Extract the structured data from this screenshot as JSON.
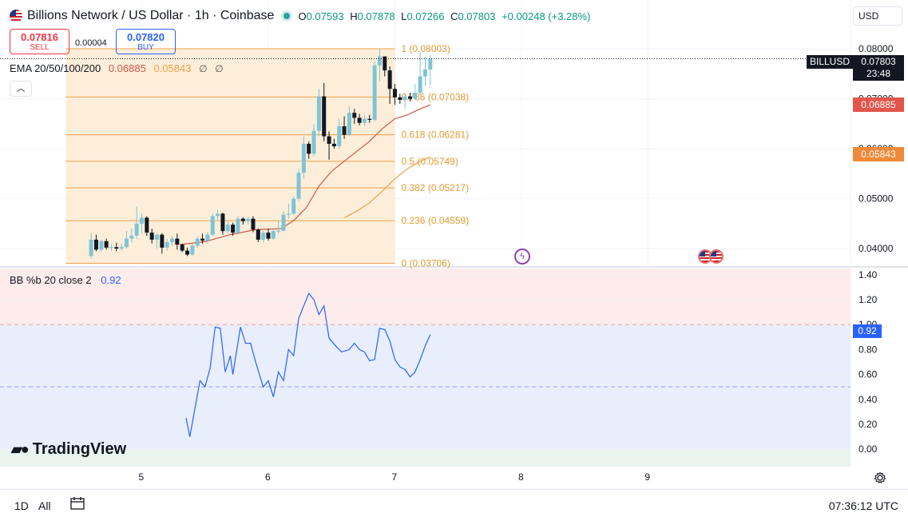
{
  "header": {
    "title": "Billions Network / US Dollar · 1h · Coinbase",
    "open_label": "O",
    "open": "0.07593",
    "high_label": "H",
    "high": "0.07878",
    "low_label": "L",
    "low": "0.07266",
    "close_label": "C",
    "close": "0.07803",
    "change": "+0.00248 (+3.28%)"
  },
  "trade": {
    "sell_price": "0.07816",
    "sell_label": "SELL",
    "spread": "0.00004",
    "buy_price": "0.07820",
    "buy_label": "BUY"
  },
  "ema": {
    "label": "EMA 20/50/100/200",
    "v20": "0.06885",
    "v50": "0.05843",
    "v100": "∅",
    "v200": "∅"
  },
  "bb": {
    "label": "BB %b 20 close 2",
    "value": "0.92"
  },
  "currency": "USD",
  "ticker": "BILLUSD",
  "last_price": "0.07803",
  "countdown": "23:48",
  "ema20_badge": "0.06885",
  "ema50_badge": "0.05843",
  "bb_badge": "0.92",
  "logo": "TradingView",
  "bottom": {
    "range_1d": "1D",
    "range_all": "All",
    "time": "07:36:12 UTC"
  },
  "colors": {
    "up": "#26a69a",
    "up_light": "#7ec4d6",
    "down": "#131722",
    "ema20": "#d0574d",
    "ema50": "#f0a04b",
    "bb": "#2962ff",
    "fib": "#f0a04b"
  },
  "chart_data": [
    {
      "type": "candlestick",
      "title": "Billions Network / US Dollar · 1h · Coinbase",
      "y_ticks": [
        "0.04000",
        "0.05000",
        "0.06000",
        "0.07000",
        "0.08000"
      ],
      "ylim": [
        0.0365,
        0.0898
      ],
      "x_ticks": [
        {
          "label": "5",
          "x": 5
        },
        {
          "label": "6",
          "x": 6
        },
        {
          "label": "7",
          "x": 7
        },
        {
          "label": "8",
          "x": 8
        },
        {
          "label": "9",
          "x": 9
        }
      ],
      "xlim": [
        3.88,
        10.6
      ],
      "candles": [
        {
          "x": 4.6,
          "o": 0.0385,
          "h": 0.0432,
          "l": 0.038,
          "c": 0.0418
        },
        {
          "x": 4.64,
          "o": 0.0418,
          "h": 0.0428,
          "l": 0.0395,
          "c": 0.0398
        },
        {
          "x": 4.68,
          "o": 0.0398,
          "h": 0.0418,
          "l": 0.0393,
          "c": 0.0415
        },
        {
          "x": 4.72,
          "o": 0.0415,
          "h": 0.042,
          "l": 0.0398,
          "c": 0.0402
        },
        {
          "x": 4.76,
          "o": 0.0402,
          "h": 0.041,
          "l": 0.0396,
          "c": 0.0403
        },
        {
          "x": 4.8,
          "o": 0.0403,
          "h": 0.0412,
          "l": 0.0395,
          "c": 0.04
        },
        {
          "x": 4.84,
          "o": 0.04,
          "h": 0.041,
          "l": 0.0396,
          "c": 0.0403
        },
        {
          "x": 4.88,
          "o": 0.0403,
          "h": 0.0435,
          "l": 0.04,
          "c": 0.042
        },
        {
          "x": 4.92,
          "o": 0.042,
          "h": 0.044,
          "l": 0.0412,
          "c": 0.0426
        },
        {
          "x": 4.96,
          "o": 0.0426,
          "h": 0.0485,
          "l": 0.042,
          "c": 0.045
        },
        {
          "x": 5.0,
          "o": 0.045,
          "h": 0.047,
          "l": 0.043,
          "c": 0.0462
        },
        {
          "x": 5.04,
          "o": 0.0462,
          "h": 0.0465,
          "l": 0.0425,
          "c": 0.0432
        },
        {
          "x": 5.08,
          "o": 0.0432,
          "h": 0.044,
          "l": 0.041,
          "c": 0.0418
        },
        {
          "x": 5.12,
          "o": 0.0418,
          "h": 0.043,
          "l": 0.04,
          "c": 0.0428
        },
        {
          "x": 5.16,
          "o": 0.0428,
          "h": 0.0431,
          "l": 0.039,
          "c": 0.0402
        },
        {
          "x": 5.2,
          "o": 0.0402,
          "h": 0.042,
          "l": 0.0396,
          "c": 0.0413
        },
        {
          "x": 5.24,
          "o": 0.0413,
          "h": 0.0425,
          "l": 0.0405,
          "c": 0.042
        },
        {
          "x": 5.28,
          "o": 0.042,
          "h": 0.043,
          "l": 0.0398,
          "c": 0.0408
        },
        {
          "x": 5.32,
          "o": 0.0408,
          "h": 0.041,
          "l": 0.0393,
          "c": 0.0396
        },
        {
          "x": 5.36,
          "o": 0.0396,
          "h": 0.0402,
          "l": 0.0385,
          "c": 0.0388
        },
        {
          "x": 5.4,
          "o": 0.0388,
          "h": 0.041,
          "l": 0.0386,
          "c": 0.0406
        },
        {
          "x": 5.44,
          "o": 0.0406,
          "h": 0.0425,
          "l": 0.0402,
          "c": 0.042
        },
        {
          "x": 5.48,
          "o": 0.042,
          "h": 0.043,
          "l": 0.041,
          "c": 0.0416
        },
        {
          "x": 5.52,
          "o": 0.0416,
          "h": 0.0432,
          "l": 0.041,
          "c": 0.0428
        },
        {
          "x": 5.56,
          "o": 0.0428,
          "h": 0.047,
          "l": 0.0425,
          "c": 0.0465
        },
        {
          "x": 5.6,
          "o": 0.0465,
          "h": 0.0478,
          "l": 0.0455,
          "c": 0.047
        },
        {
          "x": 5.64,
          "o": 0.047,
          "h": 0.0472,
          "l": 0.0428,
          "c": 0.0435
        },
        {
          "x": 5.68,
          "o": 0.0435,
          "h": 0.0455,
          "l": 0.043,
          "c": 0.0448
        },
        {
          "x": 5.72,
          "o": 0.0448,
          "h": 0.0452,
          "l": 0.0426,
          "c": 0.0432
        },
        {
          "x": 5.76,
          "o": 0.0432,
          "h": 0.0465,
          "l": 0.0428,
          "c": 0.046
        },
        {
          "x": 5.8,
          "o": 0.046,
          "h": 0.0463,
          "l": 0.0448,
          "c": 0.0455
        },
        {
          "x": 5.84,
          "o": 0.0455,
          "h": 0.0463,
          "l": 0.0448,
          "c": 0.046
        },
        {
          "x": 5.88,
          "o": 0.046,
          "h": 0.0465,
          "l": 0.0433,
          "c": 0.0438
        },
        {
          "x": 5.92,
          "o": 0.0438,
          "h": 0.044,
          "l": 0.0413,
          "c": 0.0418
        },
        {
          "x": 5.96,
          "o": 0.0418,
          "h": 0.0436,
          "l": 0.0412,
          "c": 0.0432
        },
        {
          "x": 6.0,
          "o": 0.0432,
          "h": 0.044,
          "l": 0.0416,
          "c": 0.042
        },
        {
          "x": 6.04,
          "o": 0.042,
          "h": 0.044,
          "l": 0.0418,
          "c": 0.0435
        },
        {
          "x": 6.08,
          "o": 0.0435,
          "h": 0.0455,
          "l": 0.043,
          "c": 0.0436
        },
        {
          "x": 6.12,
          "o": 0.0436,
          "h": 0.0475,
          "l": 0.0434,
          "c": 0.0468
        },
        {
          "x": 6.16,
          "o": 0.0468,
          "h": 0.049,
          "l": 0.046,
          "c": 0.047
        },
        {
          "x": 6.2,
          "o": 0.047,
          "h": 0.0505,
          "l": 0.0468,
          "c": 0.05
        },
        {
          "x": 6.24,
          "o": 0.05,
          "h": 0.056,
          "l": 0.0496,
          "c": 0.0552
        },
        {
          "x": 6.28,
          "o": 0.0552,
          "h": 0.0625,
          "l": 0.054,
          "c": 0.061
        },
        {
          "x": 6.32,
          "o": 0.061,
          "h": 0.0615,
          "l": 0.058,
          "c": 0.059
        },
        {
          "x": 6.36,
          "o": 0.059,
          "h": 0.065,
          "l": 0.0585,
          "c": 0.0636
        },
        {
          "x": 6.4,
          "o": 0.0636,
          "h": 0.072,
          "l": 0.0625,
          "c": 0.0705
        },
        {
          "x": 6.44,
          "o": 0.0705,
          "h": 0.0732,
          "l": 0.0615,
          "c": 0.0625
        },
        {
          "x": 6.48,
          "o": 0.0625,
          "h": 0.0635,
          "l": 0.0578,
          "c": 0.061
        },
        {
          "x": 6.52,
          "o": 0.061,
          "h": 0.062,
          "l": 0.06,
          "c": 0.0605
        },
        {
          "x": 6.56,
          "o": 0.0605,
          "h": 0.066,
          "l": 0.06,
          "c": 0.0645
        },
        {
          "x": 6.6,
          "o": 0.0645,
          "h": 0.0665,
          "l": 0.062,
          "c": 0.0628
        },
        {
          "x": 6.64,
          "o": 0.0628,
          "h": 0.0685,
          "l": 0.0625,
          "c": 0.0672
        },
        {
          "x": 6.68,
          "o": 0.0672,
          "h": 0.068,
          "l": 0.065,
          "c": 0.0662
        },
        {
          "x": 6.72,
          "o": 0.0662,
          "h": 0.067,
          "l": 0.0647,
          "c": 0.0652
        },
        {
          "x": 6.76,
          "o": 0.0652,
          "h": 0.0668,
          "l": 0.0645,
          "c": 0.066
        },
        {
          "x": 6.8,
          "o": 0.066,
          "h": 0.0668,
          "l": 0.0652,
          "c": 0.0658
        },
        {
          "x": 6.84,
          "o": 0.0658,
          "h": 0.0775,
          "l": 0.0655,
          "c": 0.0767
        },
        {
          "x": 6.88,
          "o": 0.0767,
          "h": 0.08,
          "l": 0.0735,
          "c": 0.0785
        },
        {
          "x": 6.92,
          "o": 0.0785,
          "h": 0.0785,
          "l": 0.0745,
          "c": 0.0757
        },
        {
          "x": 6.96,
          "o": 0.0757,
          "h": 0.0765,
          "l": 0.069,
          "c": 0.072
        },
        {
          "x": 7.0,
          "o": 0.072,
          "h": 0.073,
          "l": 0.0688,
          "c": 0.0703
        },
        {
          "x": 7.04,
          "o": 0.0703,
          "h": 0.071,
          "l": 0.069,
          "c": 0.0698
        },
        {
          "x": 7.08,
          "o": 0.0698,
          "h": 0.0708,
          "l": 0.068,
          "c": 0.0705
        },
        {
          "x": 7.12,
          "o": 0.0705,
          "h": 0.0712,
          "l": 0.0695,
          "c": 0.07
        },
        {
          "x": 7.16,
          "o": 0.07,
          "h": 0.073,
          "l": 0.0698,
          "c": 0.0712
        },
        {
          "x": 7.2,
          "o": 0.0712,
          "h": 0.0795,
          "l": 0.0708,
          "c": 0.0745
        },
        {
          "x": 7.24,
          "o": 0.0745,
          "h": 0.0785,
          "l": 0.0726,
          "c": 0.0759
        },
        {
          "x": 7.28,
          "o": 0.0759,
          "h": 0.0788,
          "l": 0.0727,
          "c": 0.078
        }
      ],
      "ema20": [
        [
          5.3,
          0.0408
        ],
        [
          5.5,
          0.0414
        ],
        [
          5.7,
          0.0428
        ],
        [
          5.9,
          0.0438
        ],
        [
          6.1,
          0.044
        ],
        [
          6.2,
          0.0456
        ],
        [
          6.3,
          0.0482
        ],
        [
          6.4,
          0.0525
        ],
        [
          6.5,
          0.0555
        ],
        [
          6.6,
          0.0575
        ],
        [
          6.7,
          0.0595
        ],
        [
          6.8,
          0.0615
        ],
        [
          6.9,
          0.064
        ],
        [
          7.0,
          0.066
        ],
        [
          7.1,
          0.0668
        ],
        [
          7.2,
          0.068
        ],
        [
          7.28,
          0.0688
        ]
      ],
      "ema50": [
        [
          6.6,
          0.0462
        ],
        [
          6.7,
          0.0475
        ],
        [
          6.8,
          0.0492
        ],
        [
          6.9,
          0.0515
        ],
        [
          7.0,
          0.054
        ],
        [
          7.1,
          0.056
        ],
        [
          7.2,
          0.0575
        ],
        [
          7.28,
          0.0584
        ]
      ],
      "fib_levels": [
        {
          "label": "1 (0.08003)",
          "price": 0.08003
        },
        {
          "label": "0.786 (0.07038)",
          "price": 0.07038
        },
        {
          "label": "0.618 (0.06281)",
          "price": 0.06281
        },
        {
          "label": "0.5 (0.05749)",
          "price": 0.05749
        },
        {
          "label": "0.382 (0.05217)",
          "price": 0.05217
        },
        {
          "label": "0.236 (0.04559)",
          "price": 0.04559
        },
        {
          "label": "0 (0.03706)",
          "price": 0.03706
        }
      ],
      "fib_x_range": [
        4.4,
        7.0
      ]
    },
    {
      "type": "line",
      "title": "BB %b 20 close 2",
      "y_ticks": [
        "0.00",
        "0.20",
        "0.40",
        "0.60",
        "0.80",
        "1.00",
        "1.20",
        "1.40"
      ],
      "ylim": [
        -0.14,
        1.45
      ],
      "upper_band": 1.0,
      "lower_band": 0.5,
      "series": [
        {
          "values": [
            [
              5.35,
              0.25
            ],
            [
              5.38,
              0.1
            ],
            [
              5.46,
              0.55
            ],
            [
              5.5,
              0.5
            ],
            [
              5.54,
              0.65
            ],
            [
              5.58,
              0.98
            ],
            [
              5.62,
              0.97
            ],
            [
              5.66,
              0.62
            ],
            [
              5.7,
              0.75
            ],
            [
              5.72,
              0.6
            ],
            [
              5.78,
              0.98
            ],
            [
              5.82,
              0.85
            ],
            [
              5.86,
              0.85
            ],
            [
              5.9,
              0.7
            ],
            [
              5.96,
              0.5
            ],
            [
              6.0,
              0.55
            ],
            [
              6.04,
              0.42
            ],
            [
              6.08,
              0.62
            ],
            [
              6.12,
              0.55
            ],
            [
              6.16,
              0.8
            ],
            [
              6.2,
              0.75
            ],
            [
              6.24,
              1.05
            ],
            [
              6.32,
              1.25
            ],
            [
              6.36,
              1.2
            ],
            [
              6.4,
              1.08
            ],
            [
              6.44,
              1.15
            ],
            [
              6.48,
              0.89
            ],
            [
              6.54,
              0.82
            ],
            [
              6.58,
              0.78
            ],
            [
              6.64,
              0.8
            ],
            [
              6.68,
              0.85
            ],
            [
              6.72,
              0.8
            ],
            [
              6.76,
              0.78
            ],
            [
              6.8,
              0.71
            ],
            [
              6.84,
              0.72
            ],
            [
              6.88,
              0.97
            ],
            [
              6.92,
              0.96
            ],
            [
              6.96,
              0.87
            ],
            [
              7.0,
              0.72
            ],
            [
              7.04,
              0.66
            ],
            [
              7.08,
              0.64
            ],
            [
              7.12,
              0.58
            ],
            [
              7.16,
              0.62
            ],
            [
              7.2,
              0.72
            ],
            [
              7.24,
              0.83
            ],
            [
              7.28,
              0.92
            ]
          ]
        }
      ]
    }
  ]
}
